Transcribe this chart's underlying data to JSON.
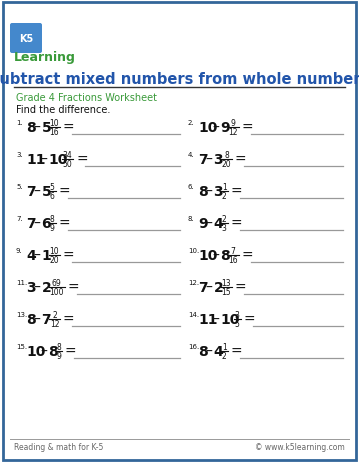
{
  "title": "Subtract mixed numbers from whole numbers",
  "subtitle": "Grade 4 Fractions Worksheet",
  "instruction": "Find the difference.",
  "footer_left": "Reading & math for K-5",
  "footer_right": "© www.k5learning.com",
  "problems": [
    {
      "num": "1",
      "whole1": "8",
      "mixed_whole": "5",
      "numer": "10",
      "denom": "16"
    },
    {
      "num": "2",
      "whole1": "10",
      "mixed_whole": "9",
      "numer": "9",
      "denom": "12"
    },
    {
      "num": "3",
      "whole1": "11",
      "mixed_whole": "10",
      "numer": "34",
      "denom": "50"
    },
    {
      "num": "4",
      "whole1": "7",
      "mixed_whole": "3",
      "numer": "8",
      "denom": "20"
    },
    {
      "num": "5",
      "whole1": "7",
      "mixed_whole": "5",
      "numer": "5",
      "denom": "6"
    },
    {
      "num": "6",
      "whole1": "8",
      "mixed_whole": "3",
      "numer": "1",
      "denom": "2"
    },
    {
      "num": "7",
      "whole1": "7",
      "mixed_whole": "6",
      "numer": "8",
      "denom": "9"
    },
    {
      "num": "8",
      "whole1": "9",
      "mixed_whole": "4",
      "numer": "2",
      "denom": "3"
    },
    {
      "num": "9",
      "whole1": "4",
      "mixed_whole": "1",
      "numer": "10",
      "denom": "20"
    },
    {
      "num": "10",
      "whole1": "10",
      "mixed_whole": "8",
      "numer": "7",
      "denom": "16"
    },
    {
      "num": "11",
      "whole1": "3",
      "mixed_whole": "2",
      "numer": "69",
      "denom": "100"
    },
    {
      "num": "12",
      "whole1": "7",
      "mixed_whole": "2",
      "numer": "13",
      "denom": "15"
    },
    {
      "num": "13",
      "whole1": "8",
      "mixed_whole": "7",
      "numer": "2",
      "denom": "12"
    },
    {
      "num": "14",
      "whole1": "11",
      "mixed_whole": "10",
      "numer": "3",
      "denom": "5"
    },
    {
      "num": "15",
      "whole1": "10",
      "mixed_whole": "8",
      "numer": "8",
      "denom": "9"
    },
    {
      "num": "16",
      "whole1": "8",
      "mixed_whole": "4",
      "numer": "1",
      "denom": "2"
    }
  ],
  "bg_color": "#ffffff",
  "border_color": "#336699",
  "title_color": "#2255aa",
  "subtitle_color": "#3a9a3a",
  "text_color": "#111111",
  "footer_color": "#666666",
  "line_color": "#999999",
  "title_underline_color": "#333333",
  "logo_bg": "#2e7d32",
  "logo_text_color": "#ffffff"
}
